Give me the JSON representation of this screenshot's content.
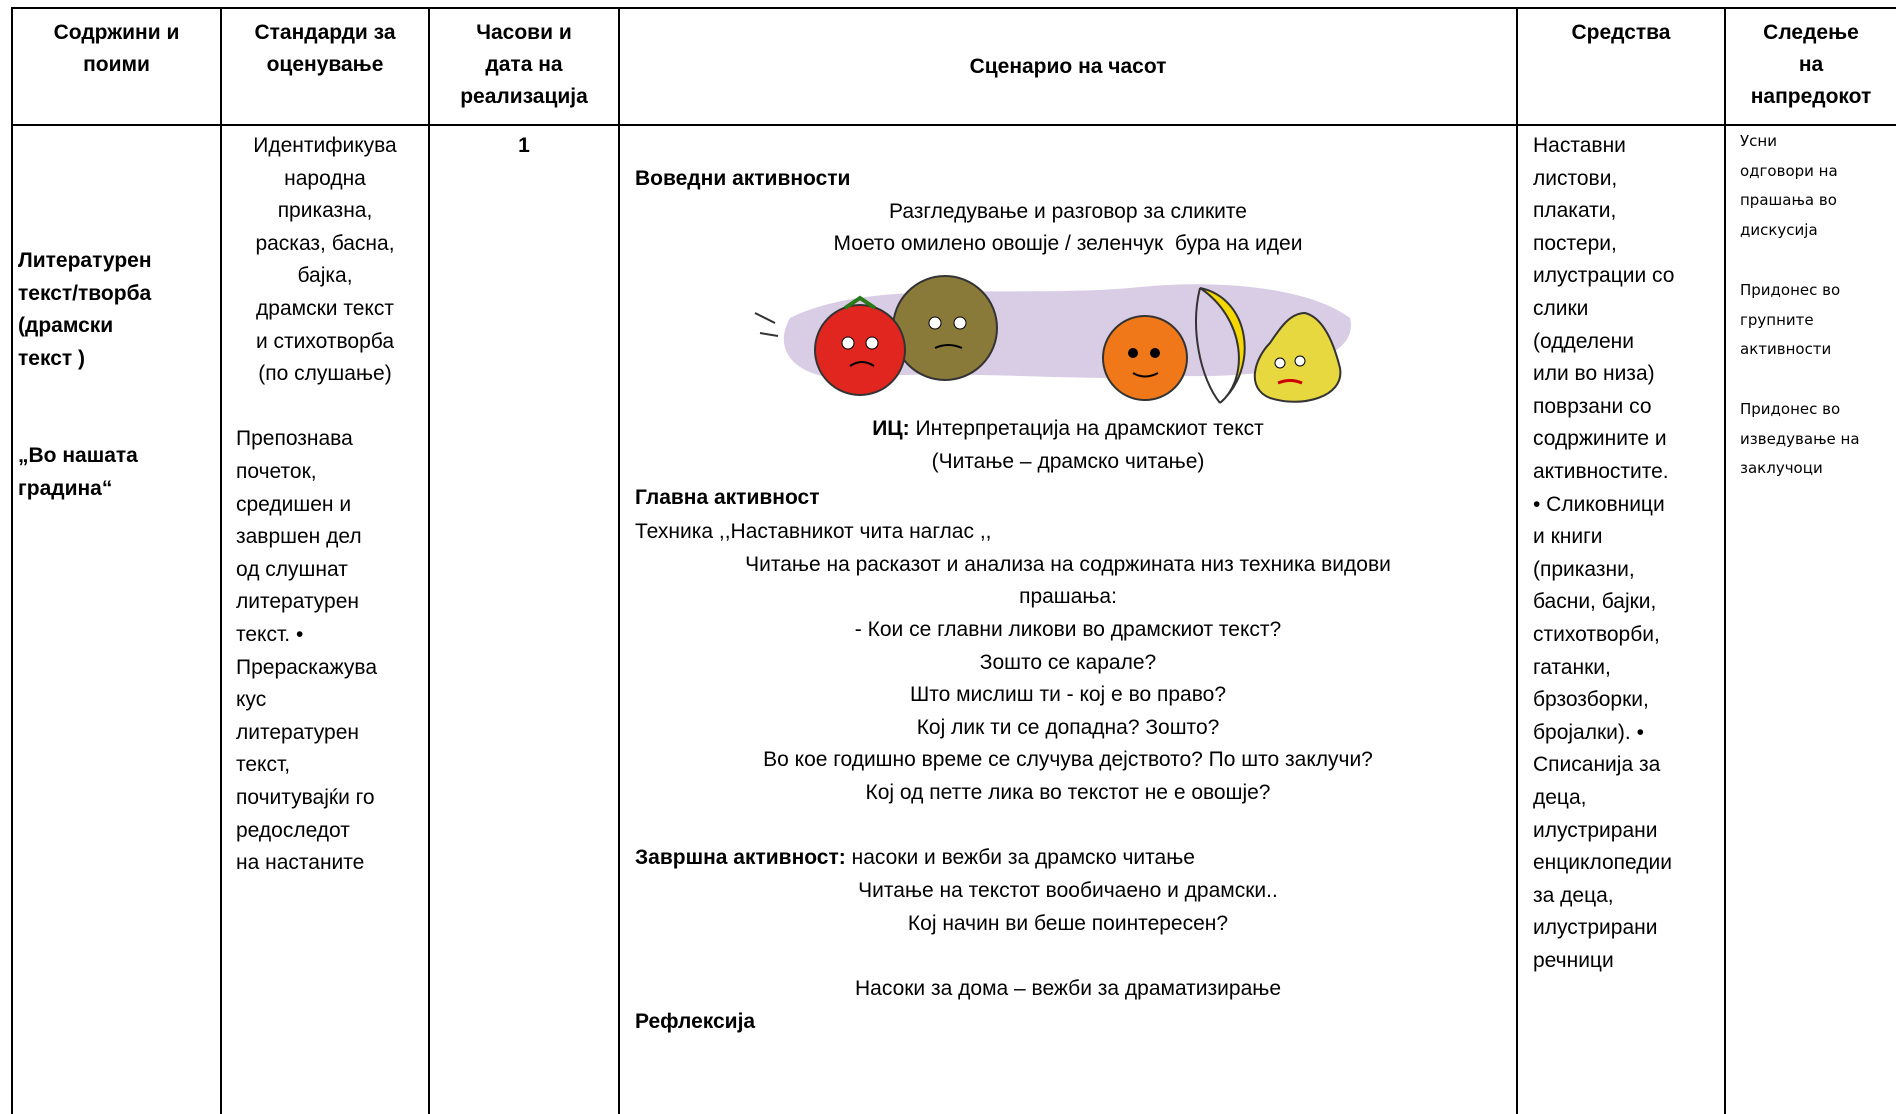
{
  "table": {
    "headers": [
      [
        "Содржини и",
        "поими"
      ],
      [
        "Стандарди за",
        "оценување"
      ],
      [
        "Часови и",
        "дата на",
        "реализација"
      ],
      [
        "Сценарио на часот"
      ],
      [
        "Средства"
      ],
      [
        "Следење",
        "на",
        "напредокот"
      ]
    ],
    "topics": [
      [
        "Литературен",
        "текст/творба",
        "(драмски",
        "текст )"
      ],
      [
        "„Во нашата",
        "градина“"
      ]
    ],
    "standards": [
      [
        "Идентификува",
        "народна",
        "приказна,",
        "расказ, басна,",
        "бајка,",
        "драмски текст",
        "и стихотворба",
        "(по слушање)"
      ],
      [
        "Препознава",
        "почеток,",
        "средишен и",
        "завршен дел",
        "од слушнат",
        "литературен",
        "текст. •",
        "Прераскажува",
        "кус",
        "литературен",
        "текст,",
        "почитувајќи го",
        "редоследот",
        "на настаните"
      ]
    ],
    "hours": "1",
    "scenario": [
      {
        "label": "Воведни активности",
        "align": "left"
      },
      {
        "text": "Разгледување и разговор за сликите",
        "align": "center"
      },
      {
        "text": "Моето омилено овошје / зеленчук  бура на идеи",
        "align": "center"
      },
      {
        "label": "ИЦ:",
        "text": " Интерпретација на драмскиот текст",
        "align": "center"
      },
      {
        "text": "(Читање – драмско читање)",
        "align": "center"
      },
      {
        "label": "Главна активност",
        "align": "left"
      },
      {
        "text": "Техника ,,Наставникот чита наглас ,,",
        "align": "left"
      },
      {
        "text": "Читање на расказот и анализа на содржината низ техника видови",
        "align": "center"
      },
      {
        "text": "прашања:",
        "align": "center"
      },
      {
        "text": "- Кои се главни ликови во драмскиот текст?",
        "align": "center"
      },
      {
        "text": "Зошто се карале?",
        "align": "center"
      },
      {
        "text": "Што мислиш ти - кој е во право?",
        "align": "center"
      },
      {
        "text": "Кој лик ти се допадна? Зошто?",
        "align": "center"
      },
      {
        "text": "Во кое годишно време се случува дејството? По што заклучи?",
        "align": "center"
      },
      {
        "text": "Кој од петте лика во текстот не е овошје?",
        "align": "center"
      },
      {
        "label": "Завршна активност:",
        "text": " насоки и вежби за драмско читање",
        "align": "left"
      },
      {
        "text": "Читање на текстот вообичаено и драмски..",
        "align": "center"
      },
      {
        "text": "Кој начин ви беше поинтересен?",
        "align": "center"
      },
      {
        "text": "Насоки за дома – вежби за драматизирање",
        "align": "center"
      },
      {
        "label": "Рефлексија",
        "align": "left"
      }
    ],
    "resources": [
      "Наставни",
      "листови,",
      "плакати,",
      "постери,",
      "илустрации со",
      "слики",
      "(одделени",
      "или во низа)",
      "поврзани со",
      "содржините и",
      "активностите.",
      "• Сликовници",
      "и книги",
      "(приказни,",
      "басни, бајки,",
      "стихотворби,",
      "гатанки,",
      "брзозборки,",
      "бројалки). •",
      "Списанија за",
      "деца,",
      "илустрирани",
      "енциклопедии",
      "за деца,",
      "илустрирани",
      "речници"
    ],
    "tracking": [
      [
        "Усни",
        "одговори на",
        "прашања во",
        "дискусија"
      ],
      [
        "Придонес во",
        "групните",
        "активности"
      ],
      [
        "Придонес во",
        "изведување на",
        "заклучоци"
      ]
    ]
  }
}
